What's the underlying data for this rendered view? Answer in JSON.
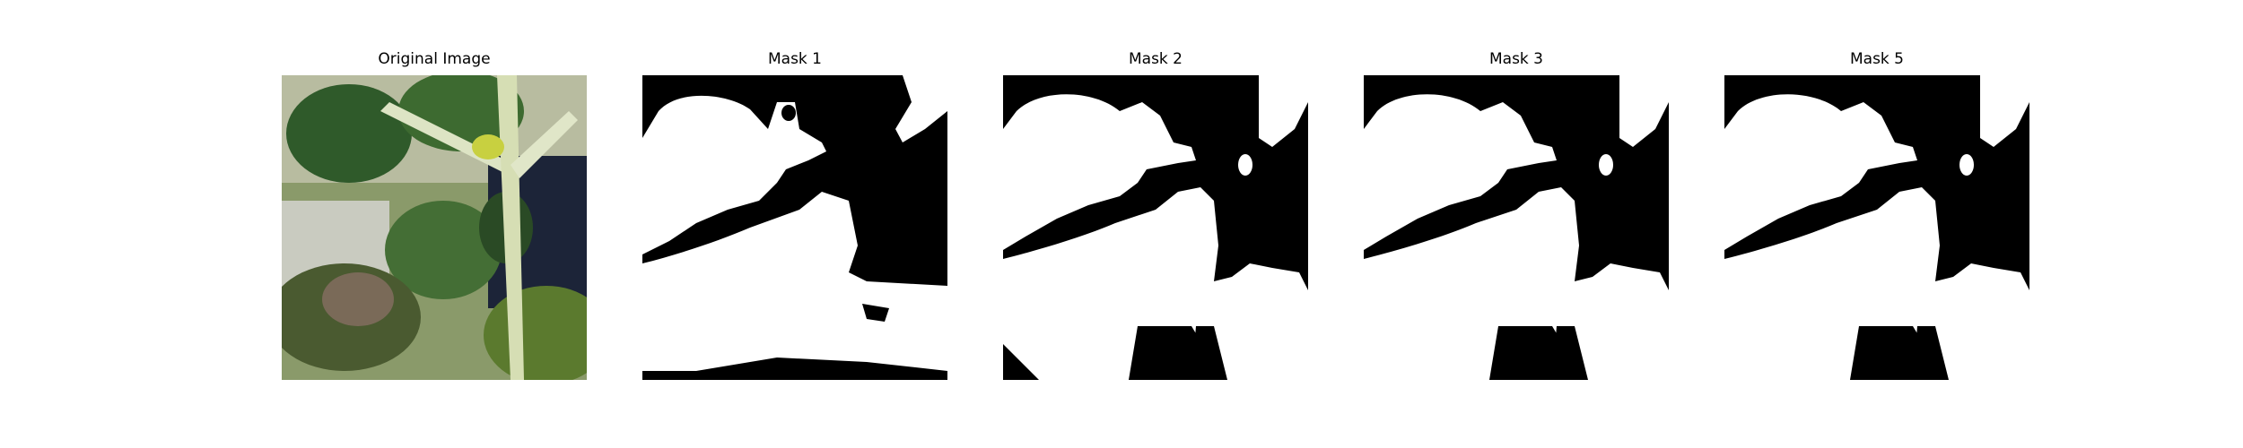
{
  "panels": [
    {
      "title": "Original Image"
    },
    {
      "title": "Mask 1"
    },
    {
      "title": "Mask 2"
    },
    {
      "title": "Mask 3"
    },
    {
      "title": "Mask 5"
    }
  ],
  "colors": {
    "mask_foreground": "#ffffff",
    "mask_background": "#000000",
    "leaf_dark": "#2f5a2a",
    "leaf_mid": "#4f7a3a",
    "stem": "#d8e0b8"
  }
}
